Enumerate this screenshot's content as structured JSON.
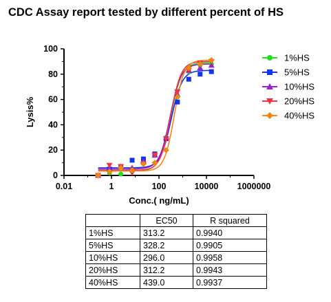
{
  "chart_data": {
    "type": "scatter",
    "title": "CDC Assay report tested by different percent of HS",
    "xlabel": "Conc.( ng/mL)",
    "ylabel": "Lysis%",
    "x_scale": "log",
    "xlim": [
      0.01,
      1000000
    ],
    "ylim": [
      0,
      100
    ],
    "x_ticks": [
      0.01,
      1,
      100,
      10000,
      1000000
    ],
    "x_tick_labels": [
      "0.01",
      "1",
      "100",
      "10000",
      "1000000"
    ],
    "y_ticks": [
      0,
      20,
      40,
      60,
      80,
      100
    ],
    "y_tick_labels": [
      "0",
      "20",
      "40",
      "60",
      "80",
      "100"
    ],
    "legend_position": "right",
    "series": [
      {
        "name": "1%HS",
        "color": "#22dd22",
        "marker": "circle",
        "x": [
          0.274,
          0.823,
          2.47,
          7.41,
          22.2,
          66.7,
          200,
          600,
          1800,
          5400,
          16200
        ],
        "y": [
          0,
          2,
          1,
          5,
          10,
          16,
          30,
          62,
          82,
          87,
          88
        ],
        "fit": {
          "bottom": 3.5,
          "top": 89,
          "ec50": 313.2,
          "hill": 1.9
        }
      },
      {
        "name": "5%HS",
        "color": "#1133ee",
        "marker": "square",
        "x": [
          0.274,
          0.823,
          2.47,
          7.41,
          22.2,
          66.7,
          200,
          600,
          1800,
          5400,
          16200
        ],
        "y": [
          0,
          5,
          7,
          12,
          13,
          17,
          29,
          58,
          76,
          80,
          82
        ],
        "fit": {
          "bottom": 6,
          "top": 83,
          "ec50": 328.2,
          "hill": 1.9
        }
      },
      {
        "name": "10%HS",
        "color": "#9922cc",
        "marker": "triangle-up",
        "x": [
          0.274,
          0.823,
          2.47,
          7.41,
          22.2,
          66.7,
          200,
          600,
          1800,
          5400,
          16200
        ],
        "y": [
          0,
          5,
          7,
          6,
          11,
          16,
          30,
          64,
          83,
          85,
          87
        ],
        "fit": {
          "bottom": 5,
          "top": 88,
          "ec50": 296.0,
          "hill": 1.9
        }
      },
      {
        "name": "20%HS",
        "color": "#ee3344",
        "marker": "triangle-down",
        "x": [
          0.274,
          0.823,
          2.47,
          7.41,
          22.2,
          66.7,
          200,
          600,
          1800,
          5400,
          16200
        ],
        "y": [
          0,
          8,
          7,
          2,
          9,
          16,
          29,
          66,
          83,
          89,
          90
        ],
        "fit": {
          "bottom": 4,
          "top": 90,
          "ec50": 312.2,
          "hill": 2.0
        }
      },
      {
        "name": "40%HS",
        "color": "#ee8811",
        "marker": "diamond",
        "x": [
          0.274,
          0.823,
          2.47,
          7.41,
          22.2,
          66.7,
          200,
          600,
          1800,
          5400,
          16200
        ],
        "y": [
          0,
          3,
          6,
          4,
          9,
          10,
          20,
          62,
          85,
          88,
          91
        ],
        "fit": {
          "bottom": 3.5,
          "top": 91,
          "ec50": 439.0,
          "hill": 2.1
        }
      }
    ]
  },
  "table": {
    "headers": [
      "",
      "EC50",
      "R squared"
    ],
    "rows": [
      {
        "label": "1%HS",
        "ec50": "313.2",
        "r2": "0.9940"
      },
      {
        "label": "5%HS",
        "ec50": "328.2",
        "r2": "0.9905"
      },
      {
        "label": "10%HS",
        "ec50": "296.0",
        "r2": "0.9958"
      },
      {
        "label": "20%HS",
        "ec50": "312.2",
        "r2": "0.9943"
      },
      {
        "label": "40%HS",
        "ec50": "439.0",
        "r2": "0.9937"
      }
    ]
  }
}
